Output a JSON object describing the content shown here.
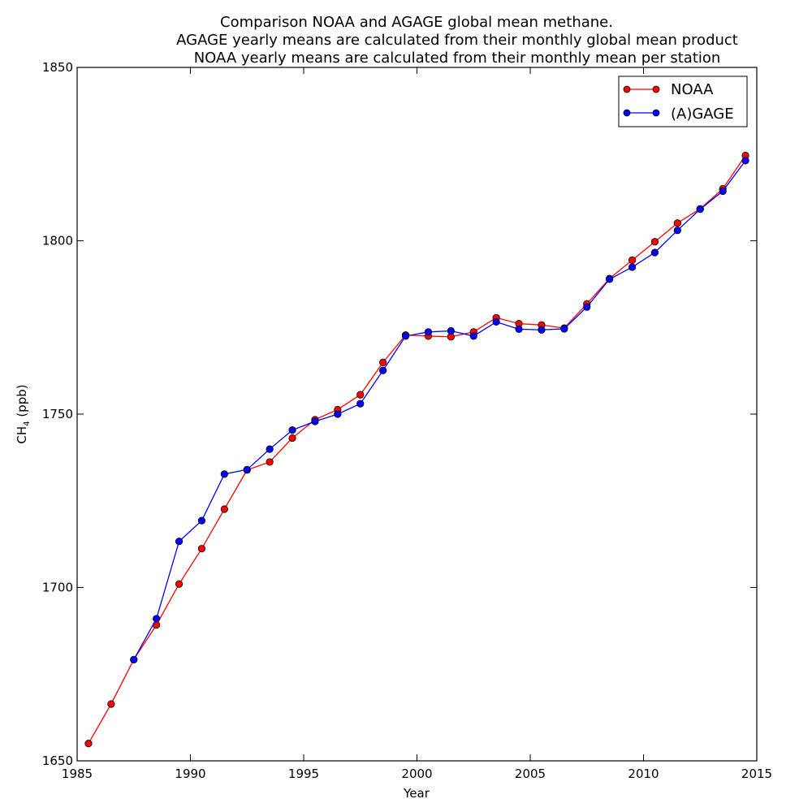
{
  "chart_data": {
    "type": "line",
    "title_lines": [
      "Comparison NOAA and AGAGE global mean methane.",
      "AGAGE yearly means are calculated from their monthly global mean product",
      "NOAA yearly means are calculated from their monthly mean per station"
    ],
    "xlabel": "Year",
    "ylabel_main": "CH",
    "ylabel_sub": "4",
    "ylabel_tail": " (ppb)",
    "xlim": [
      1985,
      2015
    ],
    "ylim": [
      1650,
      1850
    ],
    "xticks": [
      1985,
      1990,
      1995,
      2000,
      2005,
      2010,
      2015
    ],
    "yticks": [
      1650,
      1700,
      1750,
      1800,
      1850
    ],
    "grid": false,
    "legend_position": "top-right",
    "series": [
      {
        "name": "NOAA",
        "color": "#ff0000",
        "x": [
          1985.5,
          1986.5,
          1987.5,
          1988.5,
          1989.5,
          1990.5,
          1991.5,
          1992.5,
          1993.5,
          1994.5,
          1995.5,
          1996.5,
          1997.5,
          1998.5,
          1999.5,
          2000.5,
          2001.5,
          2002.5,
          2003.5,
          2004.5,
          2005.5,
          2006.5,
          2007.5,
          2008.5,
          2009.5,
          2010.5,
          2011.5,
          2012.5,
          2013.5,
          2014.5
        ],
        "y": [
          1655.0,
          1666.4,
          1679.2,
          1689.2,
          1701.0,
          1711.2,
          1722.6,
          1733.9,
          1736.2,
          1743.1,
          1748.4,
          1751.3,
          1755.6,
          1764.9,
          1772.8,
          1772.5,
          1772.3,
          1773.7,
          1777.8,
          1776.1,
          1775.7,
          1774.8,
          1781.8,
          1789.1,
          1794.4,
          1799.7,
          1805.1,
          1809.2,
          1815.0,
          1824.6
        ]
      },
      {
        "name": "(A)GAGE",
        "color": "#0000ff",
        "x": [
          1987.5,
          1988.5,
          1989.5,
          1990.5,
          1991.5,
          1992.5,
          1993.5,
          1994.5,
          1995.5,
          1996.5,
          1997.5,
          1998.5,
          1999.5,
          2000.5,
          2001.5,
          2002.5,
          2003.5,
          2004.5,
          2005.5,
          2006.5,
          2007.5,
          2008.5,
          2009.5,
          2010.5,
          2011.5,
          2012.5,
          2013.5,
          2014.5
        ],
        "y": [
          1679.2,
          1691.0,
          1713.3,
          1719.3,
          1732.7,
          1734.0,
          1739.9,
          1745.4,
          1747.9,
          1750.0,
          1753.0,
          1762.6,
          1772.5,
          1773.7,
          1774.0,
          1772.5,
          1776.6,
          1774.5,
          1774.3,
          1774.6,
          1780.9,
          1788.9,
          1792.4,
          1796.6,
          1803.0,
          1809.1,
          1814.3,
          1823.1
        ]
      }
    ]
  }
}
